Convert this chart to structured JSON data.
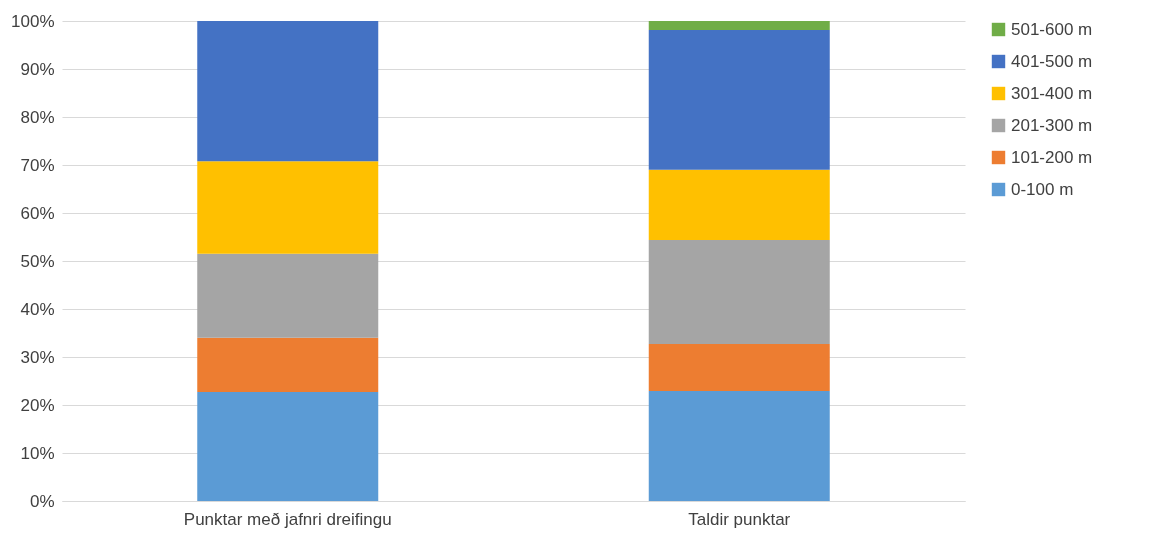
{
  "chart_data": {
    "type": "bar",
    "stacked": true,
    "categories": [
      "Punktar með jafnri dreifingu",
      "Taldir punktar"
    ],
    "series": [
      {
        "name": "0-100 m",
        "color": "#5b9bd5",
        "values": [
          22.7,
          22.9
        ]
      },
      {
        "name": "101-200 m",
        "color": "#ed7d31",
        "values": [
          11.3,
          9.8
        ]
      },
      {
        "name": "201-300 m",
        "color": "#a5a5a5",
        "values": [
          17.5,
          21.7
        ]
      },
      {
        "name": "301-400 m",
        "color": "#ffc000",
        "values": [
          19.3,
          14.6
        ]
      },
      {
        "name": "401-500 m",
        "color": "#4472c4",
        "values": [
          29.2,
          29.1
        ]
      },
      {
        "name": "501-600 m",
        "color": "#70ad47",
        "values": [
          null,
          1.9
        ]
      }
    ],
    "ylim": [
      0,
      100
    ],
    "yticks": [
      {
        "value": 0,
        "label": "0%"
      },
      {
        "value": 10,
        "label": "10%"
      },
      {
        "value": 20,
        "label": "20%"
      },
      {
        "value": 30,
        "label": "30%"
      },
      {
        "value": 40,
        "label": "40%"
      },
      {
        "value": 50,
        "label": "50%"
      },
      {
        "value": 60,
        "label": "60%"
      },
      {
        "value": 70,
        "label": "70%"
      },
      {
        "value": 80,
        "label": "80%"
      },
      {
        "value": 90,
        "label": "90%"
      },
      {
        "value": 100,
        "label": "100%"
      }
    ],
    "grid": "y",
    "legend": "right"
  }
}
